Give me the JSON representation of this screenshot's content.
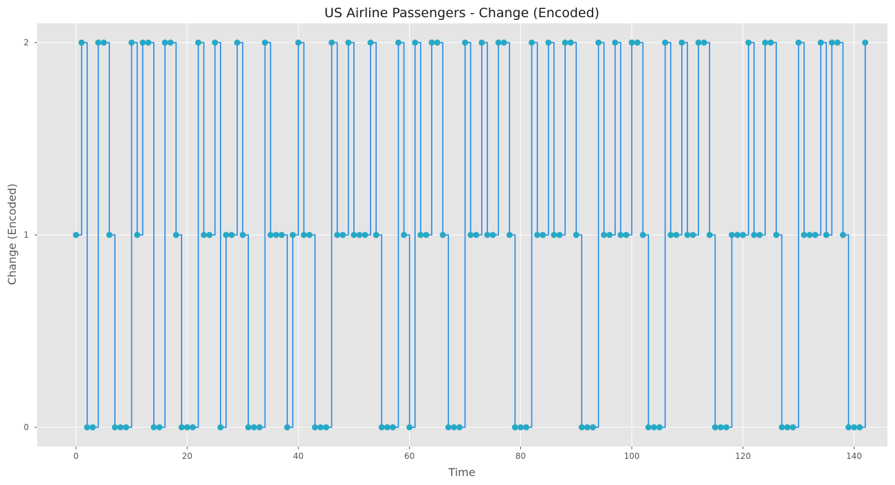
{
  "chart_data": {
    "type": "line",
    "style": "step-post with markers",
    "title": "US Airline Passengers - Change (Encoded)",
    "xlabel": "Time",
    "ylabel": "Change (Encoded)",
    "xlim": [
      -7,
      146
    ],
    "ylim": [
      -0.1,
      2.1
    ],
    "xticks": [
      0,
      20,
      40,
      60,
      80,
      100,
      120,
      140
    ],
    "yticks": [
      0,
      1,
      2
    ],
    "grid": true,
    "colors": {
      "line": "#1e88e5",
      "marker": "#26a9c6",
      "background": "#e5e5e5",
      "grid": "#ffffff"
    },
    "series": [
      {
        "x": [
          0,
          1,
          2,
          3,
          4,
          5,
          6,
          7,
          8,
          9,
          10,
          11,
          12,
          13,
          14,
          15,
          16,
          17,
          18,
          19,
          20,
          21,
          22,
          23,
          24,
          25,
          26,
          27,
          28,
          29,
          30,
          31,
          32,
          33,
          34,
          35,
          36,
          37,
          38,
          39,
          40,
          41,
          42,
          43,
          44,
          45,
          46,
          47,
          48,
          49,
          50,
          51,
          52,
          53,
          54,
          55,
          56,
          57,
          58,
          59,
          60,
          61,
          62,
          63,
          64,
          65,
          66,
          67,
          68,
          69,
          70,
          71,
          72,
          73,
          74,
          75,
          76,
          77,
          78,
          79,
          80,
          81,
          82,
          83,
          84,
          85,
          86,
          87,
          88,
          89,
          90,
          91,
          92,
          93,
          94,
          95,
          96,
          97,
          98,
          99,
          100,
          101,
          102,
          103,
          104,
          105,
          106,
          107,
          108,
          109,
          110,
          111,
          112,
          113,
          114,
          115,
          116,
          117,
          118,
          119,
          120,
          121,
          122,
          123,
          124,
          125,
          126,
          127,
          128,
          129,
          130,
          131,
          132,
          133,
          134,
          135,
          136,
          137,
          138,
          139,
          140,
          141,
          142
        ],
        "values": [
          1,
          2,
          0,
          0,
          2,
          2,
          1,
          0,
          0,
          0,
          2,
          1,
          2,
          2,
          0,
          0,
          2,
          2,
          1,
          0,
          0,
          0,
          2,
          1,
          1,
          2,
          0,
          1,
          1,
          2,
          1,
          0,
          0,
          0,
          2,
          1,
          1,
          1,
          0,
          1,
          2,
          1,
          1,
          0,
          0,
          0,
          2,
          1,
          1,
          2,
          1,
          1,
          1,
          2,
          1,
          0,
          0,
          0,
          2,
          1,
          0,
          2,
          1,
          1,
          2,
          2,
          1,
          0,
          0,
          0,
          2,
          1,
          1,
          2,
          1,
          1,
          2,
          2,
          1,
          0,
          0,
          0,
          2,
          1,
          1,
          2,
          1,
          1,
          2,
          2,
          1,
          0,
          0,
          0,
          2,
          1,
          1,
          2,
          1,
          1,
          2,
          2,
          1,
          0,
          0,
          0,
          2,
          1,
          1,
          2,
          1,
          1,
          2,
          2,
          1,
          0,
          0,
          0,
          1,
          1,
          1,
          2,
          1,
          1,
          2,
          2,
          1,
          0,
          0,
          0,
          2,
          1,
          1,
          1,
          2,
          1,
          2,
          2,
          1,
          0,
          0,
          0,
          2
        ]
      }
    ]
  }
}
